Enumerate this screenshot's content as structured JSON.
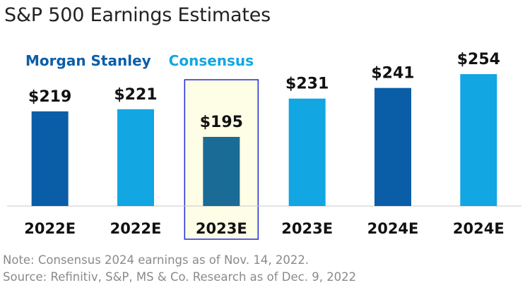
{
  "title": "S&P 500 Earnings Estimates",
  "legend": [
    {
      "label": "Morgan Stanley",
      "color": "#0a5ea8"
    },
    {
      "label": "Consensus",
      "color": "#12a6e3"
    }
  ],
  "chart_data": {
    "type": "bar",
    "categories": [
      "2022E",
      "2022E",
      "2023E",
      "2023E",
      "2024E",
      "2024E"
    ],
    "series_of_bar": [
      "Morgan Stanley",
      "Consensus",
      "Morgan Stanley",
      "Consensus",
      "Morgan Stanley",
      "Consensus"
    ],
    "values": [
      219,
      221,
      195,
      231,
      241,
      254
    ],
    "data_labels": [
      "$219",
      "$221",
      "$195",
      "$231",
      "$241",
      "$254"
    ],
    "highlighted_index": 2,
    "highlight_fill": "#fefde6",
    "highlight_border": "#1f2bd6",
    "highlighted_bar_color": "#1a6b96",
    "ylim": [
      130,
      260
    ],
    "legend_position": "top-left",
    "grid": false
  },
  "notes": [
    "Note: Consensus 2024 earnings as of Nov. 14, 2022.",
    "Source: Refinitiv, S&P, MS & Co. Research as of Dec. 9, 2022"
  ]
}
